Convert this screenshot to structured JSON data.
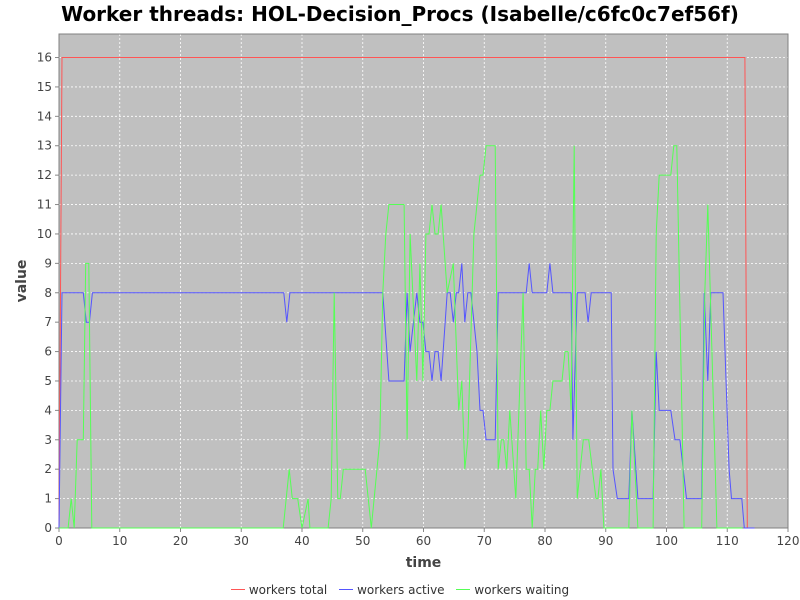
{
  "chart_data": {
    "type": "line",
    "title": "Worker threads: HOL-Decision_Procs (Isabelle/c6fc0c7ef56f)",
    "xlabel": "time",
    "ylabel": "value",
    "xlim": [
      0,
      120
    ],
    "ylim": [
      0,
      16.8
    ],
    "xticks": [
      0,
      10,
      20,
      30,
      40,
      50,
      60,
      70,
      80,
      90,
      100,
      110,
      120
    ],
    "yticks": [
      0,
      1,
      2,
      3,
      4,
      5,
      6,
      7,
      8,
      9,
      10,
      11,
      12,
      13,
      14,
      15,
      16
    ],
    "grid": true,
    "legend": "bottom",
    "background": "#c0c0c0",
    "series": [
      {
        "name": "workers total",
        "color": "#ff5555",
        "points": [
          [
            0,
            0
          ],
          [
            0.5,
            16
          ],
          [
            112.9,
            16
          ],
          [
            113.3,
            0
          ],
          [
            114.5,
            0
          ]
        ]
      },
      {
        "name": "workers active",
        "color": "#5555ff",
        "points": [
          [
            0,
            0
          ],
          [
            0.5,
            8
          ],
          [
            4,
            8
          ],
          [
            4.5,
            7
          ],
          [
            5,
            7
          ],
          [
            5.5,
            8
          ],
          [
            37,
            8
          ],
          [
            37.5,
            7
          ],
          [
            38,
            8
          ],
          [
            53.3,
            8
          ],
          [
            54.3,
            5
          ],
          [
            56.8,
            5
          ],
          [
            57.3,
            8
          ],
          [
            57.8,
            6
          ],
          [
            58.9,
            8
          ],
          [
            59.4,
            7
          ],
          [
            59.9,
            7
          ],
          [
            60.4,
            6
          ],
          [
            60.9,
            6
          ],
          [
            61.4,
            5
          ],
          [
            61.9,
            6
          ],
          [
            62.4,
            6
          ],
          [
            62.9,
            5
          ],
          [
            63.9,
            8
          ],
          [
            64.4,
            8
          ],
          [
            64.9,
            7
          ],
          [
            65.4,
            8
          ],
          [
            65.8,
            8
          ],
          [
            66.3,
            9
          ],
          [
            66.8,
            7
          ],
          [
            67.3,
            8
          ],
          [
            67.8,
            8
          ],
          [
            68.8,
            6
          ],
          [
            69.3,
            4
          ],
          [
            69.8,
            4
          ],
          [
            70.3,
            3
          ],
          [
            71.8,
            3
          ],
          [
            72.3,
            8
          ],
          [
            76.9,
            8
          ],
          [
            77.4,
            9
          ],
          [
            77.9,
            8
          ],
          [
            80.3,
            8
          ],
          [
            80.8,
            9
          ],
          [
            81.3,
            8
          ],
          [
            84.3,
            8
          ],
          [
            84.6,
            3
          ],
          [
            85.3,
            8
          ],
          [
            86.6,
            8
          ],
          [
            87.1,
            7
          ],
          [
            87.6,
            8
          ],
          [
            90.9,
            8
          ],
          [
            91.2,
            2
          ],
          [
            91.9,
            1
          ],
          [
            93.8,
            1
          ],
          [
            94.3,
            4
          ],
          [
            95.3,
            1
          ],
          [
            97.8,
            1
          ],
          [
            98.3,
            6
          ],
          [
            98.8,
            4
          ],
          [
            100.7,
            4
          ],
          [
            101.4,
            3
          ],
          [
            102.2,
            3
          ],
          [
            103.3,
            1
          ],
          [
            105.8,
            1
          ],
          [
            106.2,
            8
          ],
          [
            106.8,
            5
          ],
          [
            107.3,
            8
          ],
          [
            109.3,
            8
          ],
          [
            110.3,
            2
          ],
          [
            110.7,
            1
          ],
          [
            112.4,
            1
          ],
          [
            112.8,
            0
          ],
          [
            114.5,
            0
          ]
        ]
      },
      {
        "name": "workers waiting",
        "color": "#55ff55",
        "points": [
          [
            0,
            0
          ],
          [
            1.5,
            0
          ],
          [
            2,
            1
          ],
          [
            2.5,
            0
          ],
          [
            3,
            3
          ],
          [
            4,
            3
          ],
          [
            4.4,
            9
          ],
          [
            4.9,
            9
          ],
          [
            5.4,
            0
          ],
          [
            36.9,
            0
          ],
          [
            37.9,
            2
          ],
          [
            38.4,
            1
          ],
          [
            39.3,
            1
          ],
          [
            40,
            0
          ],
          [
            41,
            1
          ],
          [
            41.3,
            0
          ],
          [
            44.3,
            0
          ],
          [
            44.8,
            1
          ],
          [
            45.3,
            8
          ],
          [
            45.9,
            1
          ],
          [
            46.3,
            1
          ],
          [
            46.8,
            2
          ],
          [
            50.4,
            2
          ],
          [
            51.4,
            0
          ],
          [
            52.8,
            3
          ],
          [
            53.3,
            8
          ],
          [
            53.8,
            10
          ],
          [
            54.3,
            11
          ],
          [
            56.8,
            11
          ],
          [
            57.3,
            3
          ],
          [
            57.8,
            10
          ],
          [
            58.9,
            5
          ],
          [
            59.4,
            9
          ],
          [
            59.9,
            5
          ],
          [
            60.4,
            10
          ],
          [
            60.9,
            10
          ],
          [
            61.4,
            11
          ],
          [
            61.9,
            10
          ],
          [
            62.4,
            10
          ],
          [
            62.9,
            11
          ],
          [
            63.9,
            8
          ],
          [
            64.9,
            9
          ],
          [
            65.8,
            4
          ],
          [
            66.3,
            5
          ],
          [
            66.8,
            2
          ],
          [
            67.3,
            3
          ],
          [
            68.3,
            10
          ],
          [
            69.3,
            12
          ],
          [
            69.8,
            12
          ],
          [
            70.3,
            13
          ],
          [
            71.8,
            13
          ],
          [
            72.3,
            2
          ],
          [
            72.8,
            3
          ],
          [
            73.2,
            3
          ],
          [
            73.7,
            2
          ],
          [
            74.2,
            4
          ],
          [
            75.2,
            1
          ],
          [
            76.4,
            8
          ],
          [
            76.9,
            2
          ],
          [
            77.4,
            2
          ],
          [
            77.9,
            0
          ],
          [
            78.4,
            2
          ],
          [
            78.8,
            2
          ],
          [
            79.3,
            4
          ],
          [
            79.8,
            2
          ],
          [
            80.3,
            4
          ],
          [
            80.8,
            4
          ],
          [
            81.3,
            5
          ],
          [
            82.8,
            5
          ],
          [
            83.3,
            6
          ],
          [
            83.8,
            6
          ],
          [
            84.3,
            4
          ],
          [
            84.8,
            13
          ],
          [
            85.3,
            1
          ],
          [
            86.3,
            3
          ],
          [
            87.2,
            3
          ],
          [
            88.4,
            1
          ],
          [
            88.7,
            1
          ],
          [
            89.2,
            2
          ],
          [
            89.7,
            0
          ],
          [
            93.8,
            0
          ],
          [
            94.3,
            4
          ],
          [
            95.3,
            0
          ],
          [
            97.8,
            0
          ],
          [
            98.3,
            10
          ],
          [
            98.8,
            12
          ],
          [
            100.7,
            12
          ],
          [
            101.2,
            13
          ],
          [
            101.7,
            13
          ],
          [
            102.9,
            0
          ],
          [
            105.8,
            0
          ],
          [
            106.3,
            8
          ],
          [
            106.8,
            11
          ],
          [
            108.3,
            0
          ],
          [
            112.5,
            0
          ]
        ]
      }
    ]
  }
}
